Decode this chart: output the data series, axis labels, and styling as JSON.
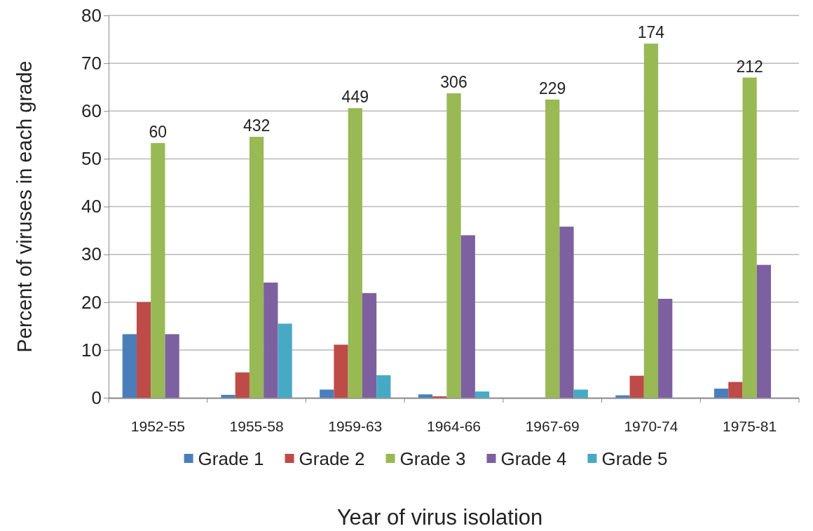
{
  "chart_data": {
    "type": "bar",
    "xlabel": "Year of virus isolation",
    "ylabel": "Percent of viruses in each grade",
    "categories": [
      "1952-55",
      "1955-58",
      "1959-63",
      "1964-66",
      "1967-69",
      "1970-74",
      "1975-81"
    ],
    "series": [
      {
        "name": "Grade 1",
        "color": "#4a7ebb",
        "values": [
          13.3,
          0.6,
          1.7,
          0.7,
          0,
          0.5,
          1.9
        ]
      },
      {
        "name": "Grade 2",
        "color": "#be4b48",
        "values": [
          20,
          5.3,
          11.1,
          0.3,
          0,
          4.6,
          3.3
        ]
      },
      {
        "name": "Grade 3",
        "color": "#98b954",
        "values": [
          53.3,
          54.6,
          60.6,
          63.7,
          62.4,
          74.1,
          67
        ]
      },
      {
        "name": "Grade 4",
        "color": "#7d60a0",
        "values": [
          13.3,
          24.1,
          21.9,
          34,
          35.8,
          20.7,
          27.8
        ]
      },
      {
        "name": "Grade 5",
        "color": "#46aac5",
        "values": [
          0,
          15.5,
          4.7,
          1.3,
          1.7,
          0,
          0
        ]
      }
    ],
    "annotations": [
      {
        "text": "60",
        "x": "1952-55",
        "y": 53.3
      },
      {
        "text": "432",
        "x": "1955-58",
        "y": 54.6
      },
      {
        "text": "449",
        "x": "1959-63",
        "y": 60.6
      },
      {
        "text": "306",
        "x": "1964-66",
        "y": 63.7
      },
      {
        "text": "229",
        "x": "1967-69",
        "y": 62.4
      },
      {
        "text": "174",
        "x": "1970-74",
        "y": 74.1
      },
      {
        "text": "212",
        "x": "1975-81",
        "y": 67
      }
    ],
    "ylim": [
      0,
      80
    ],
    "yticks": [
      0,
      10,
      20,
      30,
      40,
      50,
      60,
      70,
      80
    ],
    "grid": "y",
    "legend": "bottom"
  }
}
